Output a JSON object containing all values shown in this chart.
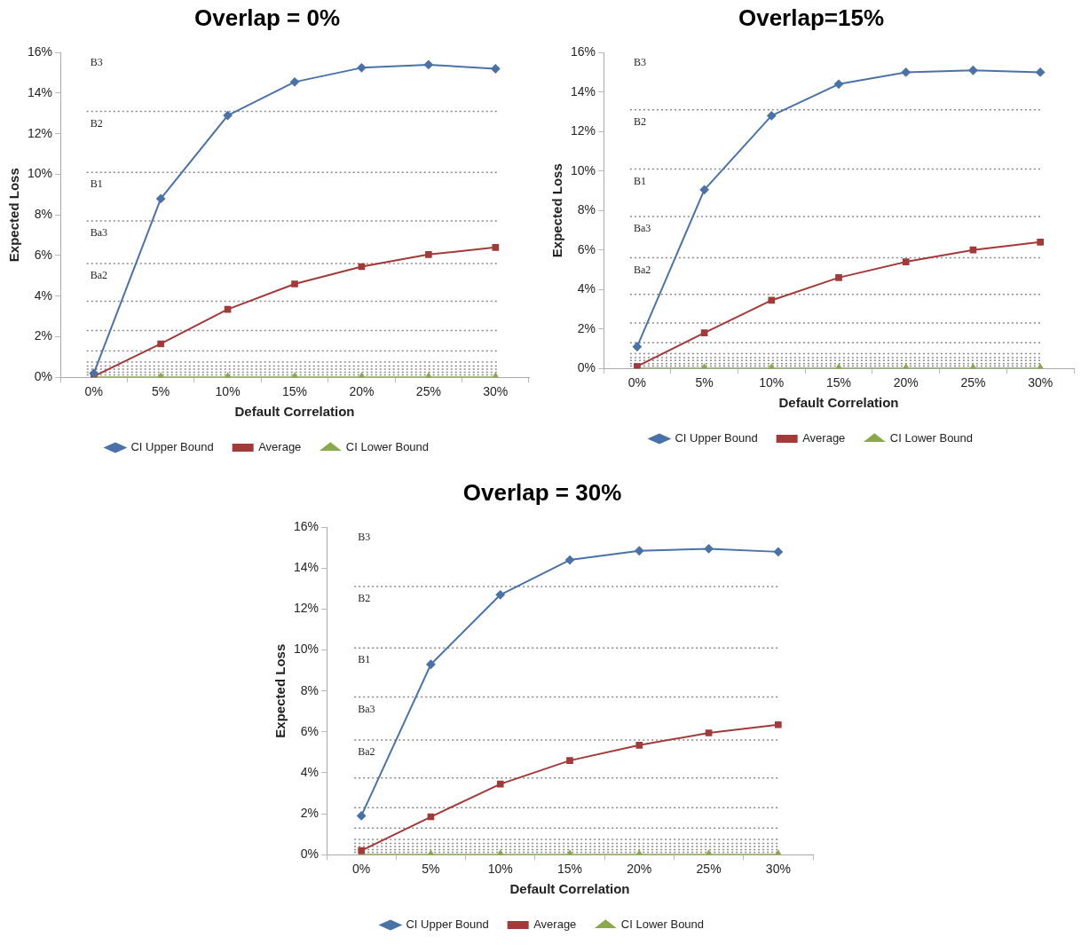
{
  "chart_data": [
    {
      "type": "line",
      "title": "Overlap = 0%",
      "xlabel": "Default Correlation",
      "ylabel": "Expected Loss",
      "categories": [
        "0%",
        "5%",
        "10%",
        "15%",
        "20%",
        "25%",
        "30%"
      ],
      "series": [
        {
          "name": "CI Upper Bound",
          "color": "#4a72a8",
          "marker": "diamond",
          "values": [
            0.2,
            8.8,
            12.9,
            14.55,
            15.25,
            15.4,
            15.2
          ]
        },
        {
          "name": "Average",
          "color": "#a33a3a",
          "marker": "square",
          "values": [
            0.05,
            1.65,
            3.35,
            4.6,
            5.45,
            6.05,
            6.4
          ]
        },
        {
          "name": "CI Lower Bound",
          "color": "#8aaa4a",
          "marker": "triangle",
          "values": [
            0,
            0,
            0,
            0,
            0,
            0,
            0
          ]
        }
      ],
      "ylim": [
        0,
        16
      ],
      "yticks": [
        {
          "value": 0,
          "label": "0%"
        },
        {
          "value": 2,
          "label": "2%"
        },
        {
          "value": 4,
          "label": "4%"
        },
        {
          "value": 6,
          "label": "6%"
        },
        {
          "value": 8,
          "label": "8%"
        },
        {
          "value": 10,
          "label": "10%"
        },
        {
          "value": 12,
          "label": "12%"
        },
        {
          "value": 14,
          "label": "14%"
        },
        {
          "value": 16,
          "label": "16%"
        }
      ],
      "ref_lines": [
        {
          "axis": "y",
          "value": 13.1,
          "color": "#888888",
          "line_style": "dotted"
        },
        {
          "axis": "y",
          "value": 10.1,
          "color": "#888888",
          "line_style": "dotted"
        },
        {
          "axis": "y",
          "value": 7.7,
          "color": "#888888",
          "line_style": "dotted"
        },
        {
          "axis": "y",
          "value": 5.6,
          "color": "#888888",
          "line_style": "dotted"
        },
        {
          "axis": "y",
          "value": 3.75,
          "color": "#888888",
          "line_style": "dotted"
        },
        {
          "axis": "y",
          "value": 2.3,
          "color": "#888888",
          "line_style": "dotted"
        },
        {
          "axis": "y",
          "value": 1.3,
          "color": "#888888",
          "line_style": "dotted"
        },
        {
          "axis": "y",
          "value": 0.75,
          "color": "#888888",
          "line_style": "dotted"
        },
        {
          "axis": "y",
          "value": 0.55,
          "color": "#888888",
          "line_style": "dotted"
        },
        {
          "axis": "y",
          "value": 0.4,
          "color": "#888888",
          "line_style": "dotted"
        },
        {
          "axis": "y",
          "value": 0.25,
          "color": "#888888",
          "line_style": "dotted"
        },
        {
          "axis": "y",
          "value": 0.12,
          "color": "#888888",
          "line_style": "dotted"
        }
      ],
      "annotations": [
        "B3",
        "B2",
        "B1",
        "Ba3",
        "Ba2"
      ],
      "legend": "bottom",
      "grid": false
    },
    {
      "type": "line",
      "title": "Overlap=15%",
      "xlabel": "Default Correlation",
      "ylabel": "Expected Loss",
      "categories": [
        "0%",
        "5%",
        "10%",
        "15%",
        "20%",
        "25%",
        "30%"
      ],
      "series": [
        {
          "name": "CI Upper Bound",
          "color": "#4a72a8",
          "marker": "diamond",
          "values": [
            1.1,
            9.05,
            12.8,
            14.4,
            15.0,
            15.1,
            15.0
          ]
        },
        {
          "name": "Average",
          "color": "#a33a3a",
          "marker": "square",
          "values": [
            0.1,
            1.8,
            3.45,
            4.6,
            5.4,
            6.0,
            6.4
          ]
        },
        {
          "name": "CI Lower Bound",
          "color": "#8aaa4a",
          "marker": "triangle",
          "values": [
            0,
            0,
            0,
            0,
            0,
            0,
            0
          ]
        }
      ],
      "ylim": [
        0,
        16
      ],
      "yticks": [
        {
          "value": 0,
          "label": "0%"
        },
        {
          "value": 2,
          "label": "2%"
        },
        {
          "value": 4,
          "label": "4%"
        },
        {
          "value": 6,
          "label": "6%"
        },
        {
          "value": 8,
          "label": "8%"
        },
        {
          "value": 10,
          "label": "10%"
        },
        {
          "value": 12,
          "label": "12%"
        },
        {
          "value": 14,
          "label": "14%"
        },
        {
          "value": 16,
          "label": "16%"
        }
      ],
      "ref_lines": [
        {
          "axis": "y",
          "value": 13.1,
          "color": "#888888",
          "line_style": "dotted"
        },
        {
          "axis": "y",
          "value": 10.1,
          "color": "#888888",
          "line_style": "dotted"
        },
        {
          "axis": "y",
          "value": 7.7,
          "color": "#888888",
          "line_style": "dotted"
        },
        {
          "axis": "y",
          "value": 5.6,
          "color": "#888888",
          "line_style": "dotted"
        },
        {
          "axis": "y",
          "value": 3.75,
          "color": "#888888",
          "line_style": "dotted"
        },
        {
          "axis": "y",
          "value": 2.3,
          "color": "#888888",
          "line_style": "dotted"
        },
        {
          "axis": "y",
          "value": 1.3,
          "color": "#888888",
          "line_style": "dotted"
        },
        {
          "axis": "y",
          "value": 0.75,
          "color": "#888888",
          "line_style": "dotted"
        },
        {
          "axis": "y",
          "value": 0.55,
          "color": "#888888",
          "line_style": "dotted"
        },
        {
          "axis": "y",
          "value": 0.4,
          "color": "#888888",
          "line_style": "dotted"
        },
        {
          "axis": "y",
          "value": 0.25,
          "color": "#888888",
          "line_style": "dotted"
        },
        {
          "axis": "y",
          "value": 0.12,
          "color": "#888888",
          "line_style": "dotted"
        }
      ],
      "annotations": [
        "B3",
        "B2",
        "B1",
        "Ba3",
        "Ba2"
      ],
      "legend": "bottom",
      "grid": false
    },
    {
      "type": "line",
      "title": "Overlap = 30%",
      "xlabel": "Default Correlation",
      "ylabel": "Expected Loss",
      "categories": [
        "0%",
        "5%",
        "10%",
        "15%",
        "20%",
        "25%",
        "30%"
      ],
      "series": [
        {
          "name": "CI Upper Bound",
          "color": "#4a72a8",
          "marker": "diamond",
          "values": [
            1.9,
            9.3,
            12.7,
            14.4,
            14.85,
            14.95,
            14.8
          ]
        },
        {
          "name": "Average",
          "color": "#a33a3a",
          "marker": "square",
          "values": [
            0.2,
            1.85,
            3.45,
            4.6,
            5.35,
            5.95,
            6.35
          ]
        },
        {
          "name": "CI Lower Bound",
          "color": "#8aaa4a",
          "marker": "triangle",
          "values": [
            0,
            0,
            0,
            0,
            0,
            0,
            0
          ]
        }
      ],
      "ylim": [
        0,
        16
      ],
      "yticks": [
        {
          "value": 0,
          "label": "0%"
        },
        {
          "value": 2,
          "label": "2%"
        },
        {
          "value": 4,
          "label": "4%"
        },
        {
          "value": 6,
          "label": "6%"
        },
        {
          "value": 8,
          "label": "8%"
        },
        {
          "value": 10,
          "label": "10%"
        },
        {
          "value": 12,
          "label": "12%"
        },
        {
          "value": 14,
          "label": "14%"
        },
        {
          "value": 16,
          "label": "16%"
        }
      ],
      "ref_lines": [
        {
          "axis": "y",
          "value": 13.1,
          "color": "#888888",
          "line_style": "dotted"
        },
        {
          "axis": "y",
          "value": 10.1,
          "color": "#888888",
          "line_style": "dotted"
        },
        {
          "axis": "y",
          "value": 7.7,
          "color": "#888888",
          "line_style": "dotted"
        },
        {
          "axis": "y",
          "value": 5.6,
          "color": "#888888",
          "line_style": "dotted"
        },
        {
          "axis": "y",
          "value": 3.75,
          "color": "#888888",
          "line_style": "dotted"
        },
        {
          "axis": "y",
          "value": 2.3,
          "color": "#888888",
          "line_style": "dotted"
        },
        {
          "axis": "y",
          "value": 1.3,
          "color": "#888888",
          "line_style": "dotted"
        },
        {
          "axis": "y",
          "value": 0.75,
          "color": "#888888",
          "line_style": "dotted"
        },
        {
          "axis": "y",
          "value": 0.55,
          "color": "#888888",
          "line_style": "dotted"
        },
        {
          "axis": "y",
          "value": 0.4,
          "color": "#888888",
          "line_style": "dotted"
        },
        {
          "axis": "y",
          "value": 0.25,
          "color": "#888888",
          "line_style": "dotted"
        },
        {
          "axis": "y",
          "value": 0.12,
          "color": "#888888",
          "line_style": "dotted"
        }
      ],
      "annotations": [
        "B3",
        "B2",
        "B1",
        "Ba3",
        "Ba2"
      ],
      "legend": "bottom",
      "grid": false
    }
  ]
}
